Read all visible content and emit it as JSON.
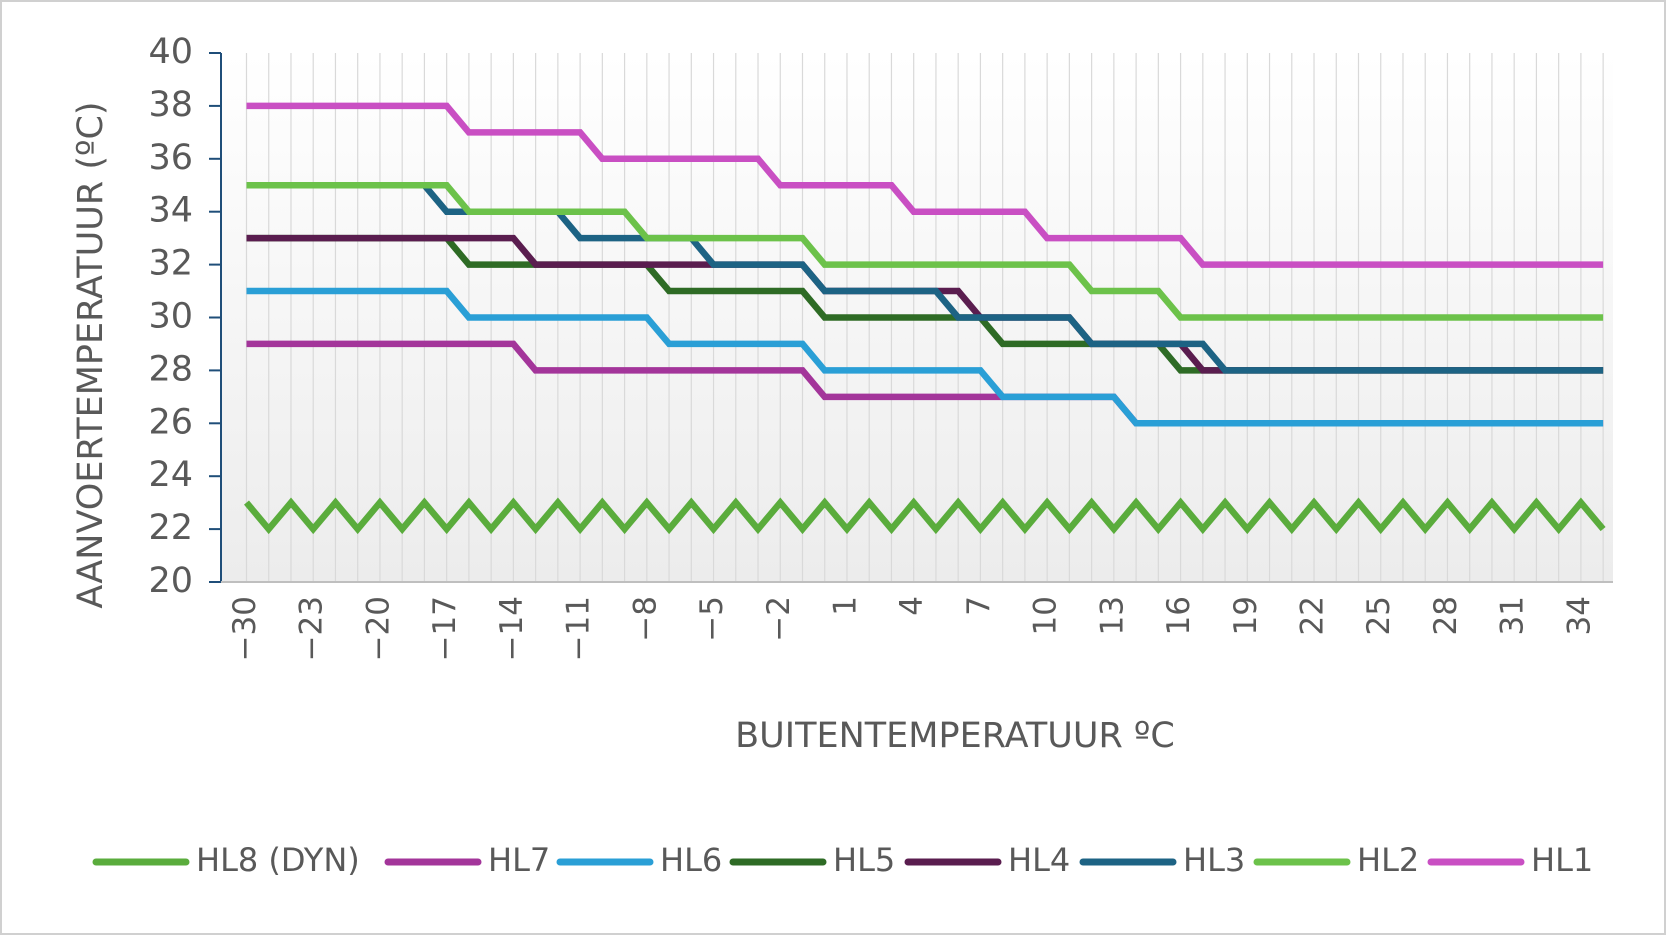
{
  "chart_data": {
    "type": "line",
    "x_label": "BUITENTEMPERATUUR ºC",
    "y_label": "AANVOERTEMPERATUUR (ºC)",
    "categories": [
      "−30",
      null,
      null,
      "−23",
      null,
      null,
      "−20",
      null,
      null,
      "−17",
      null,
      null,
      "−14",
      null,
      null,
      "−11",
      null,
      null,
      "−8",
      null,
      null,
      "−5",
      null,
      null,
      "−2",
      null,
      null,
      "1",
      null,
      null,
      "4",
      null,
      null,
      "7",
      null,
      null,
      "10",
      null,
      null,
      "13",
      null,
      null,
      "16",
      null,
      null,
      "19",
      null,
      null,
      "22",
      null,
      null,
      "25",
      null,
      null,
      "28",
      null,
      null,
      "31",
      null,
      null,
      "34",
      null
    ],
    "ylim": [
      20,
      40
    ],
    "yticks": [
      20,
      22,
      24,
      26,
      28,
      30,
      32,
      34,
      36,
      38,
      40
    ],
    "grid": true,
    "legend": "bottom",
    "series": [
      {
        "name": "HL8 (DYN)",
        "color": "#5aac3c",
        "values": [
          23,
          22,
          23,
          22,
          23,
          22,
          23,
          22,
          23,
          22,
          23,
          22,
          23,
          22,
          23,
          22,
          23,
          22,
          23,
          22,
          23,
          22,
          23,
          22,
          23,
          22,
          23,
          22,
          23,
          22,
          23,
          22,
          23,
          22,
          23,
          22,
          23,
          22,
          23,
          22,
          23,
          22,
          23,
          22,
          23,
          22,
          23,
          22,
          23,
          22,
          23,
          22,
          23,
          22,
          23,
          22,
          23,
          22,
          23,
          22,
          23,
          22
        ]
      },
      {
        "name": "HL7",
        "color": "#a3359a",
        "values": [
          29,
          29,
          29,
          29,
          29,
          29,
          29,
          29,
          29,
          29,
          29,
          29,
          29,
          28,
          28,
          28,
          28,
          28,
          28,
          28,
          28,
          28,
          28,
          28,
          28,
          28,
          27,
          27,
          27,
          27,
          27,
          27,
          27,
          27,
          27,
          27,
          27,
          27,
          27,
          27,
          26,
          26,
          26,
          26,
          26,
          26,
          26,
          26,
          26,
          26,
          26,
          26,
          26,
          26,
          26,
          26,
          26,
          26,
          26,
          26,
          26,
          26
        ]
      },
      {
        "name": "HL6",
        "color": "#2a9fd6",
        "values": [
          31,
          31,
          31,
          31,
          31,
          31,
          31,
          31,
          31,
          31,
          30,
          30,
          30,
          30,
          30,
          30,
          30,
          30,
          30,
          29,
          29,
          29,
          29,
          29,
          29,
          29,
          28,
          28,
          28,
          28,
          28,
          28,
          28,
          28,
          27,
          27,
          27,
          27,
          27,
          27,
          26,
          26,
          26,
          26,
          26,
          26,
          26,
          26,
          26,
          26,
          26,
          26,
          26,
          26,
          26,
          26,
          26,
          26,
          26,
          26,
          26,
          26
        ]
      },
      {
        "name": "HL5",
        "color": "#2e6b25",
        "values": [
          33,
          33,
          33,
          33,
          33,
          33,
          33,
          33,
          33,
          33,
          32,
          32,
          32,
          32,
          32,
          32,
          32,
          32,
          32,
          31,
          31,
          31,
          31,
          31,
          31,
          31,
          30,
          30,
          30,
          30,
          30,
          30,
          30,
          30,
          29,
          29,
          29,
          29,
          29,
          29,
          29,
          29,
          28,
          28,
          28,
          28,
          28,
          28,
          28,
          28,
          28,
          28,
          28,
          28,
          28,
          28,
          28,
          28,
          28,
          28,
          28,
          28
        ]
      },
      {
        "name": "HL4",
        "color": "#5a1d4f",
        "values": [
          33,
          33,
          33,
          33,
          33,
          33,
          33,
          33,
          33,
          33,
          33,
          33,
          33,
          32,
          32,
          32,
          32,
          32,
          32,
          32,
          32,
          32,
          32,
          32,
          32,
          32,
          31,
          31,
          31,
          31,
          31,
          31,
          31,
          30,
          30,
          30,
          30,
          30,
          29,
          29,
          29,
          29,
          29,
          28,
          28,
          28,
          28,
          28,
          28,
          28,
          28,
          28,
          28,
          28,
          28,
          28,
          28,
          28,
          28,
          28,
          28,
          28
        ]
      },
      {
        "name": "HL3",
        "color": "#1d6384",
        "values": [
          35,
          35,
          35,
          35,
          35,
          35,
          35,
          35,
          35,
          34,
          34,
          34,
          34,
          34,
          34,
          33,
          33,
          33,
          33,
          33,
          33,
          32,
          32,
          32,
          32,
          32,
          31,
          31,
          31,
          31,
          31,
          31,
          30,
          30,
          30,
          30,
          30,
          30,
          29,
          29,
          29,
          29,
          29,
          29,
          28,
          28,
          28,
          28,
          28,
          28,
          28,
          28,
          28,
          28,
          28,
          28,
          28,
          28,
          28,
          28,
          28,
          28
        ]
      },
      {
        "name": "HL2",
        "color": "#6cc24a",
        "values": [
          35,
          35,
          35,
          35,
          35,
          35,
          35,
          35,
          35,
          35,
          34,
          34,
          34,
          34,
          34,
          34,
          34,
          34,
          33,
          33,
          33,
          33,
          33,
          33,
          33,
          33,
          32,
          32,
          32,
          32,
          32,
          32,
          32,
          32,
          32,
          32,
          32,
          32,
          31,
          31,
          31,
          31,
          30,
          30,
          30,
          30,
          30,
          30,
          30,
          30,
          30,
          30,
          30,
          30,
          30,
          30,
          30,
          30,
          30,
          30,
          30,
          30
        ]
      },
      {
        "name": "HL1",
        "color": "#c94fc3",
        "values": [
          38,
          38,
          38,
          38,
          38,
          38,
          38,
          38,
          38,
          38,
          37,
          37,
          37,
          37,
          37,
          37,
          36,
          36,
          36,
          36,
          36,
          36,
          36,
          36,
          35,
          35,
          35,
          35,
          35,
          35,
          34,
          34,
          34,
          34,
          34,
          34,
          33,
          33,
          33,
          33,
          33,
          33,
          33,
          32,
          32,
          32,
          32,
          32,
          32,
          32,
          32,
          32,
          32,
          32,
          32,
          32,
          32,
          32,
          32,
          32,
          32,
          32
        ]
      }
    ]
  }
}
